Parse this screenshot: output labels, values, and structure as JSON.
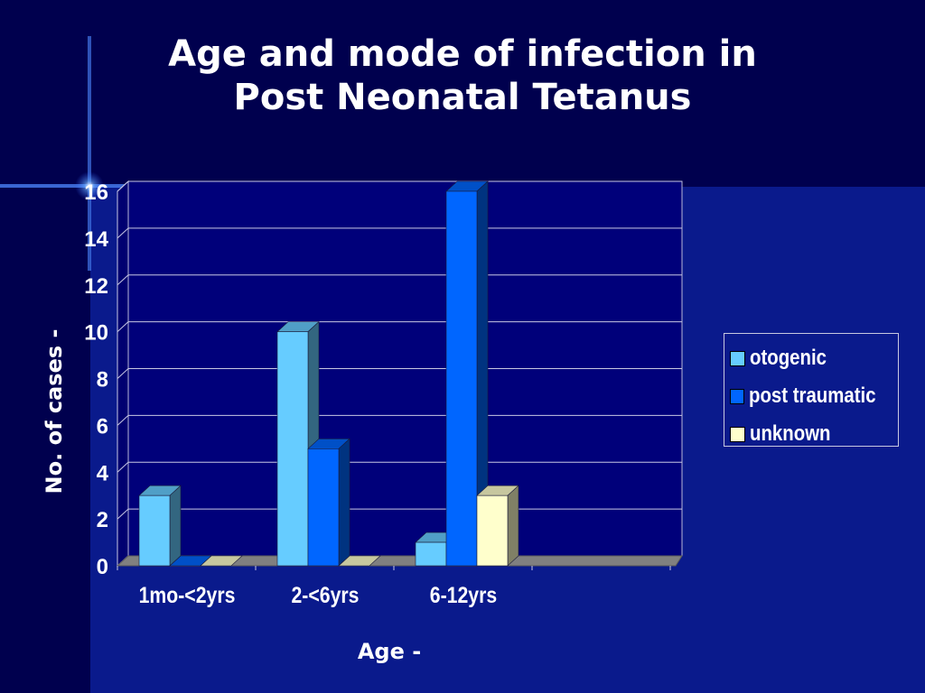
{
  "chart_data": {
    "type": "bar",
    "title": "Age and mode of infection in Post Neonatal Tetanus",
    "title_lines": [
      "Age and mode of infection in",
      "Post Neonatal Tetanus"
    ],
    "xlabel": "Age -",
    "ylabel": "No. of cases -",
    "categories": [
      "1mo-<2yrs",
      "2-<6yrs",
      "6-12yrs"
    ],
    "series": [
      {
        "name": "otogenic",
        "values": [
          3,
          10,
          1
        ],
        "color": "#66ccff"
      },
      {
        "name": "post traumatic",
        "values": [
          0,
          5,
          16
        ],
        "color": "#0066ff"
      },
      {
        "name": "unknown",
        "values": [
          0,
          0,
          3
        ],
        "color": "#ffffcc"
      }
    ],
    "ylim": [
      0,
      16
    ],
    "yticks": [
      0,
      2,
      4,
      6,
      8,
      10,
      12,
      14,
      16
    ],
    "grid": true,
    "legend_position": "right",
    "style": "3d"
  }
}
